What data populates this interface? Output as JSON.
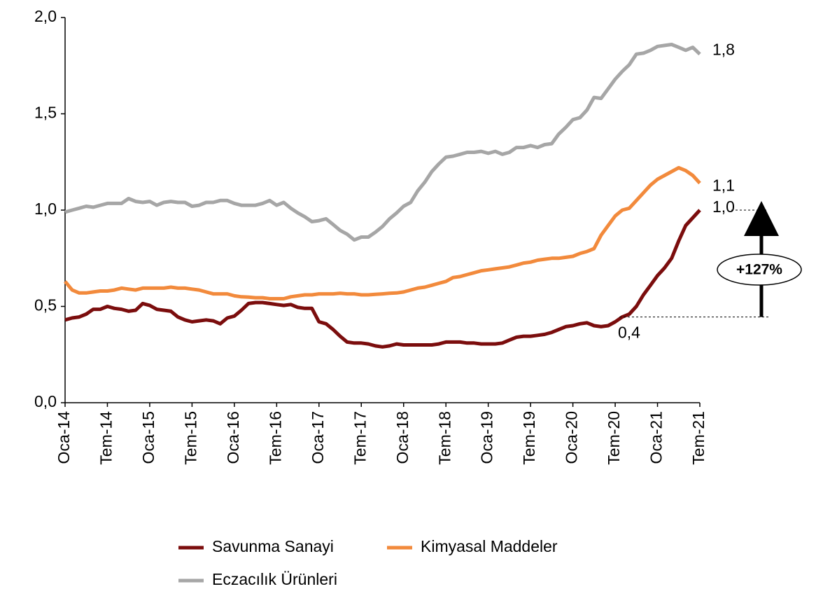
{
  "chart_data": {
    "type": "line",
    "categories": [
      "Oca-14",
      null,
      null,
      null,
      null,
      null,
      "Tem-14",
      null,
      null,
      null,
      null,
      null,
      "Oca-15",
      null,
      null,
      null,
      null,
      null,
      "Tem-15",
      null,
      null,
      null,
      null,
      null,
      "Oca-16",
      null,
      null,
      null,
      null,
      null,
      "Tem-16",
      null,
      null,
      null,
      null,
      null,
      "Oca-17",
      null,
      null,
      null,
      null,
      null,
      "Tem-17",
      null,
      null,
      null,
      null,
      null,
      "Oca-18",
      null,
      null,
      null,
      null,
      null,
      "Tem-18",
      null,
      null,
      null,
      null,
      null,
      "Oca-19",
      null,
      null,
      null,
      null,
      null,
      "Tem-19",
      null,
      null,
      null,
      null,
      null,
      "Oca-20",
      null,
      null,
      null,
      null,
      null,
      "Tem-20",
      null,
      null,
      null,
      null,
      null,
      "Oca-21",
      null,
      null,
      null,
      null,
      null,
      "Tem-21"
    ],
    "series": [
      {
        "name": "Savunma Sanayi",
        "color": "#7b0d0d",
        "values": [
          0.43,
          0.44,
          0.445,
          0.46,
          0.485,
          0.485,
          0.5,
          0.49,
          0.485,
          0.475,
          0.48,
          0.515,
          0.505,
          0.485,
          0.48,
          0.475,
          0.445,
          0.43,
          0.42,
          0.425,
          0.43,
          0.425,
          0.41,
          0.44,
          0.45,
          0.48,
          0.515,
          0.52,
          0.52,
          0.515,
          0.51,
          0.505,
          0.51,
          0.495,
          0.49,
          0.49,
          0.42,
          0.41,
          0.38,
          0.345,
          0.315,
          0.31,
          0.31,
          0.305,
          0.295,
          0.29,
          0.295,
          0.305,
          0.3,
          0.3,
          0.3,
          0.3,
          0.3,
          0.305,
          0.315,
          0.315,
          0.315,
          0.31,
          0.31,
          0.305,
          0.305,
          0.305,
          0.31,
          0.325,
          0.34,
          0.345,
          0.345,
          0.35,
          0.355,
          0.365,
          0.38,
          0.395,
          0.4,
          0.41,
          0.415,
          0.4,
          0.395,
          0.4,
          0.42,
          0.445,
          0.46,
          0.5,
          0.56,
          0.61,
          0.66,
          0.7,
          0.75,
          0.84,
          0.92,
          0.96,
          1.0
        ]
      },
      {
        "name": "Kimyasal Maddeler",
        "color": "#f28a3c",
        "values": [
          0.63,
          0.585,
          0.57,
          0.57,
          0.575,
          0.58,
          0.58,
          0.585,
          0.595,
          0.59,
          0.585,
          0.595,
          0.595,
          0.595,
          0.595,
          0.6,
          0.595,
          0.595,
          0.59,
          0.585,
          0.575,
          0.565,
          0.565,
          0.565,
          0.555,
          0.55,
          0.548,
          0.545,
          0.545,
          0.54,
          0.54,
          0.54,
          0.55,
          0.555,
          0.56,
          0.56,
          0.565,
          0.565,
          0.565,
          0.568,
          0.565,
          0.565,
          0.56,
          0.56,
          0.563,
          0.565,
          0.568,
          0.57,
          0.575,
          0.585,
          0.595,
          0.6,
          0.61,
          0.62,
          0.63,
          0.65,
          0.655,
          0.665,
          0.675,
          0.685,
          0.69,
          0.695,
          0.7,
          0.705,
          0.715,
          0.725,
          0.73,
          0.74,
          0.745,
          0.75,
          0.75,
          0.755,
          0.76,
          0.775,
          0.785,
          0.8,
          0.87,
          0.92,
          0.97,
          1.0,
          1.01,
          1.05,
          1.09,
          1.13,
          1.16,
          1.18,
          1.2,
          1.22,
          1.205,
          1.18,
          1.14
        ]
      },
      {
        "name": "Eczacılık Ürünleri",
        "color": "#a6a6a6",
        "values": [
          0.99,
          1.0,
          1.01,
          1.02,
          1.015,
          1.025,
          1.035,
          1.035,
          1.035,
          1.06,
          1.045,
          1.04,
          1.045,
          1.025,
          1.04,
          1.045,
          1.04,
          1.04,
          1.02,
          1.025,
          1.04,
          1.04,
          1.05,
          1.05,
          1.035,
          1.025,
          1.025,
          1.025,
          1.035,
          1.05,
          1.025,
          1.04,
          1.01,
          0.985,
          0.965,
          0.94,
          0.945,
          0.955,
          0.925,
          0.895,
          0.875,
          0.845,
          0.86,
          0.86,
          0.885,
          0.915,
          0.955,
          0.985,
          1.02,
          1.04,
          1.1,
          1.145,
          1.2,
          1.24,
          1.275,
          1.28,
          1.29,
          1.3,
          1.3,
          1.305,
          1.295,
          1.305,
          1.29,
          1.3,
          1.325,
          1.325,
          1.335,
          1.325,
          1.34,
          1.345,
          1.395,
          1.43,
          1.47,
          1.48,
          1.52,
          1.585,
          1.58,
          1.63,
          1.68,
          1.72,
          1.755,
          1.81,
          1.815,
          1.83,
          1.85,
          1.855,
          1.86,
          1.845,
          1.83,
          1.845,
          1.81
        ]
      }
    ],
    "ylim": [
      0,
      2
    ],
    "yticks": [
      {
        "value": 0,
        "label": "0,0"
      },
      {
        "value": 0.5,
        "label": "0,5"
      },
      {
        "value": 1,
        "label": "1,0"
      },
      {
        "value": 1.5,
        "label": "1,5"
      },
      {
        "value": 2,
        "label": "2,0"
      }
    ],
    "annotations": [
      "1,8",
      "1,1",
      "1,0",
      "0,4",
      "+127%"
    ]
  }
}
